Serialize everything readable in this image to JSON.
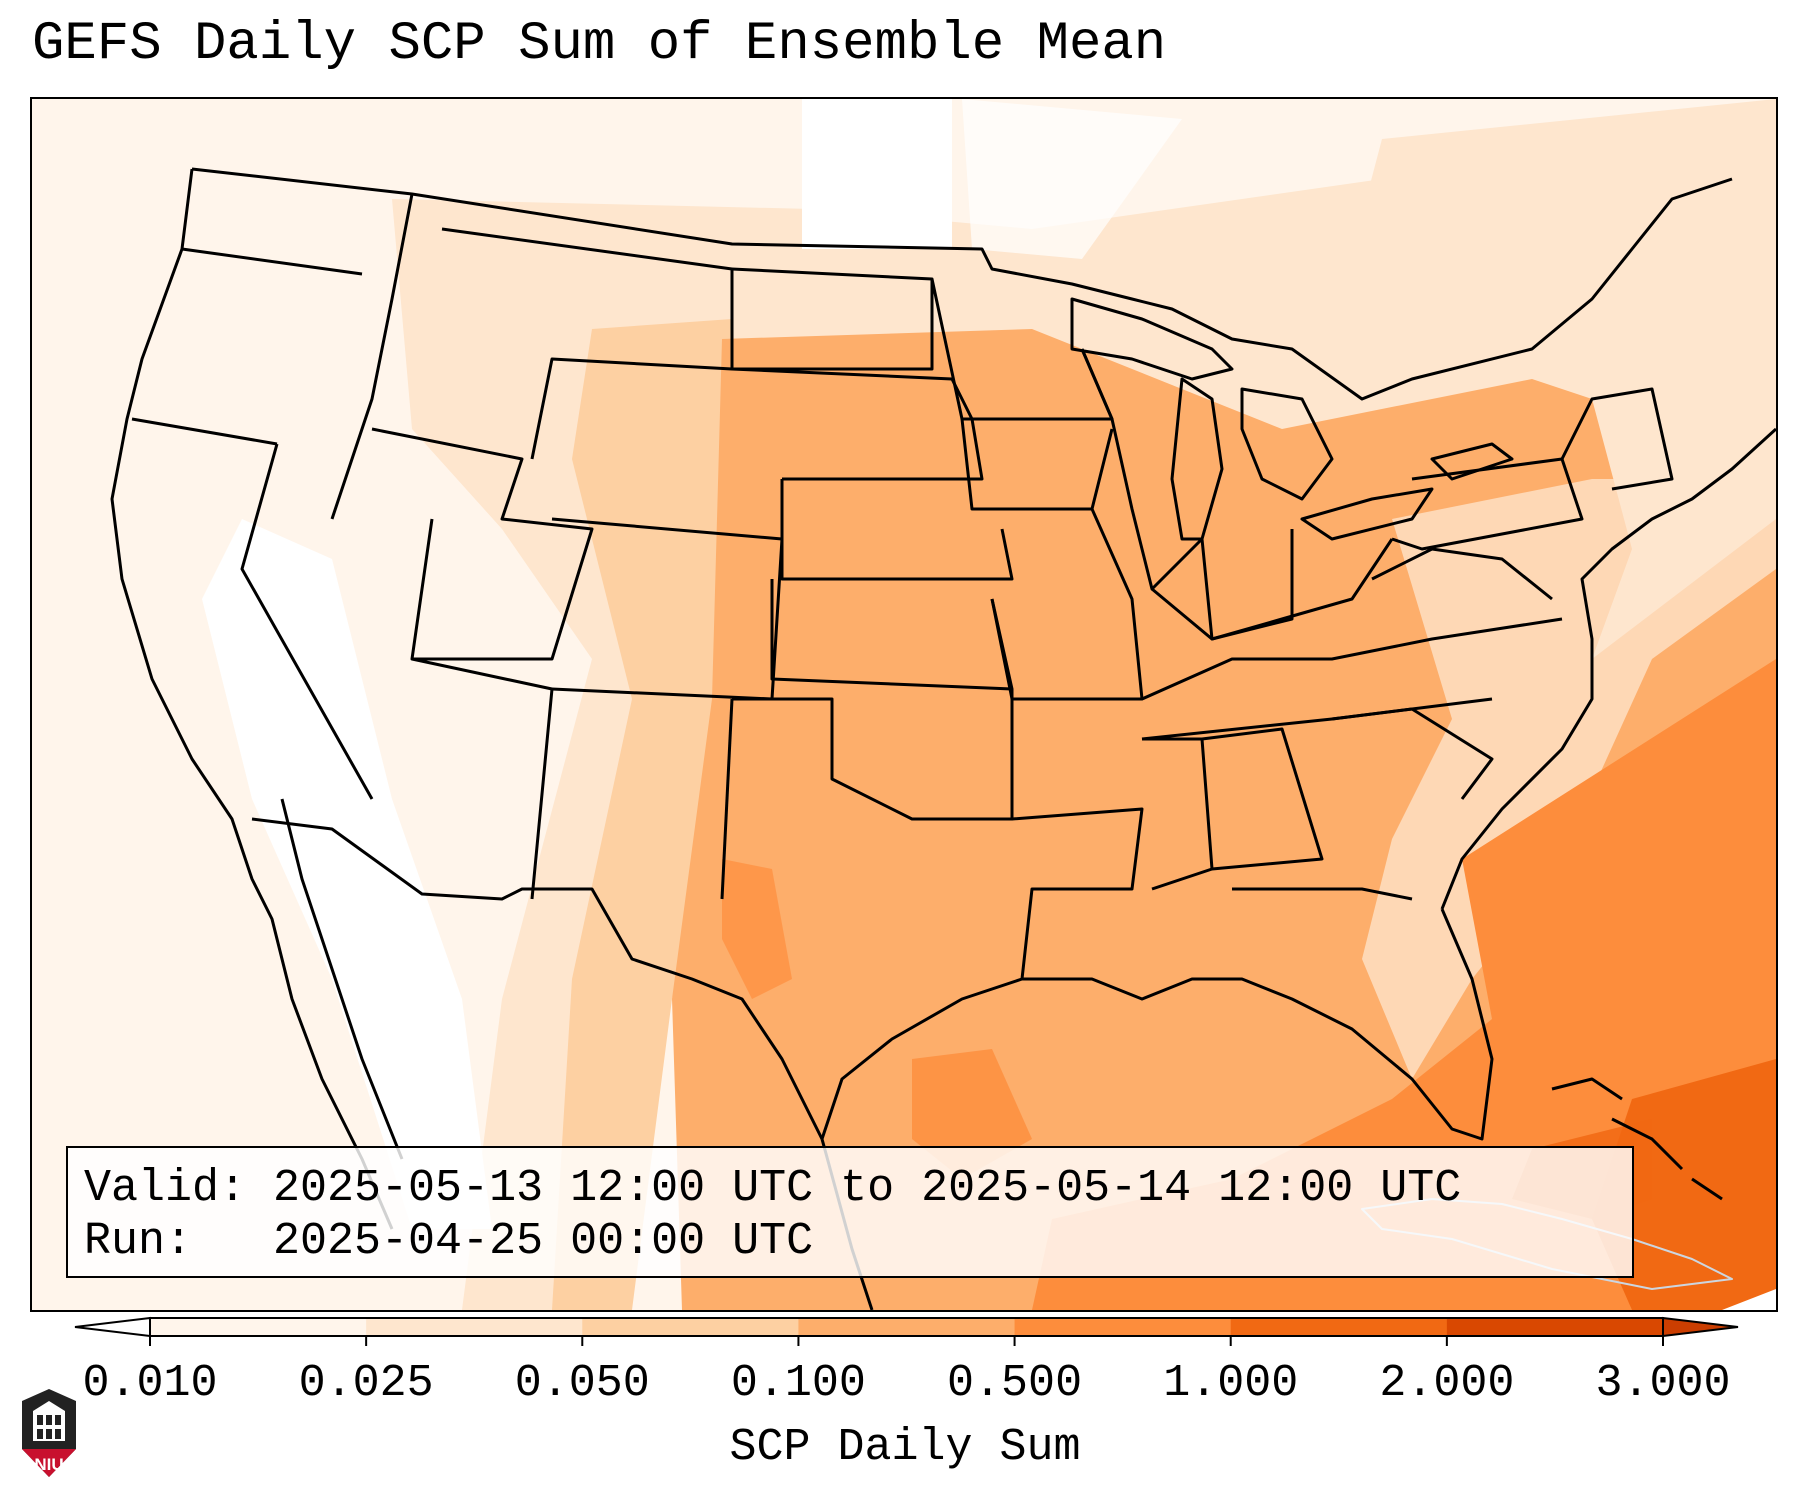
{
  "title": "GEFS Daily SCP Sum of Ensemble Mean",
  "info": {
    "valid_line": "Valid: 2025-05-13 12:00 UTC to 2025-05-14 12:00 UTC",
    "run_line": "Run:   2025-04-25 00:00 UTC"
  },
  "colorbar": {
    "label": "SCP Daily Sum",
    "ticks": [
      "0.010",
      "0.025",
      "0.050",
      "0.100",
      "0.500",
      "1.000",
      "2.000",
      "3.000"
    ],
    "colors": [
      "#fff5eb",
      "#fee6ce",
      "#fdd0a2",
      "#fdae6b",
      "#fd8d3c",
      "#f16913",
      "#d94801"
    ],
    "extend": "both"
  },
  "map": {
    "projection": "Lambert conformal, CONUS",
    "shading_levels": {
      "west": "0.010-0.025",
      "rockies_plains": "0.025-0.050",
      "central_east": "0.100-0.500",
      "gulf_southeast_coast": "0.500-1.000",
      "bahamas_cuba": "1.000-2.000"
    }
  },
  "logo": {
    "text": "NIU",
    "color": "#c8102e"
  }
}
